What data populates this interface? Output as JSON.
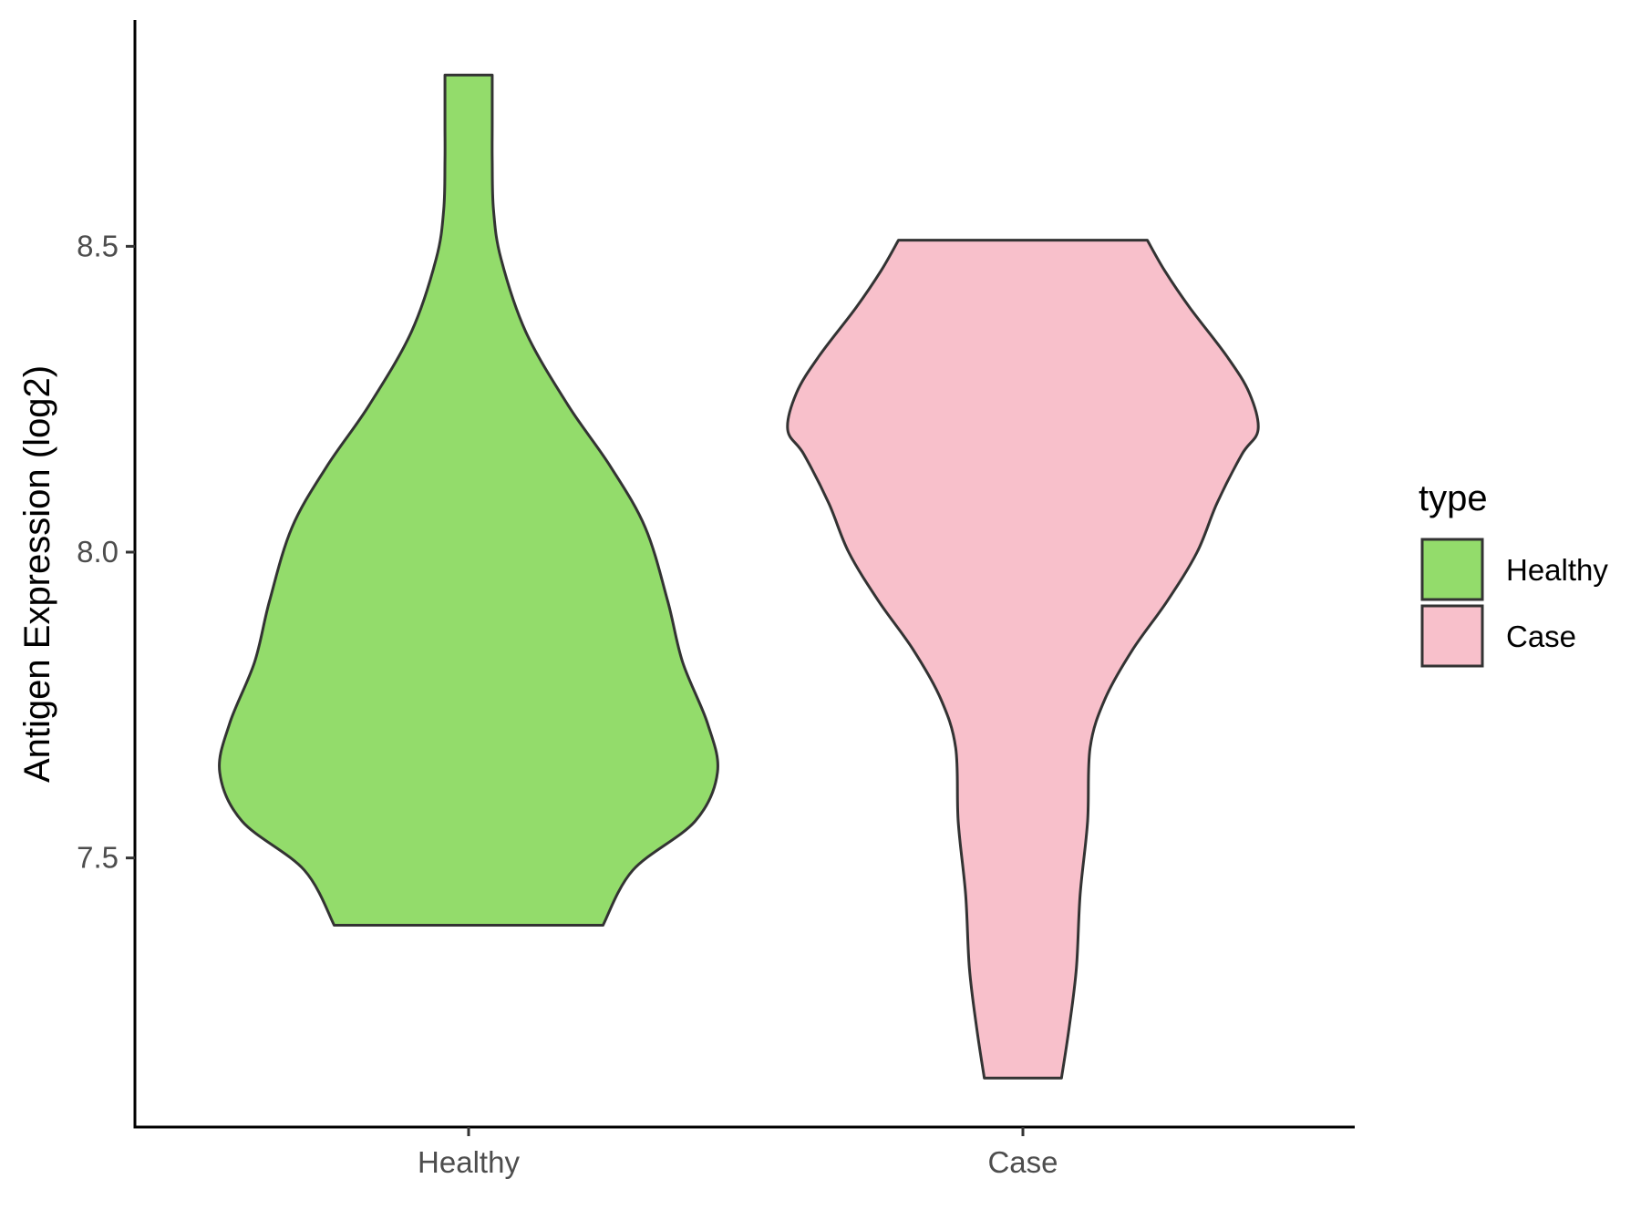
{
  "chart_data": {
    "type": "violin",
    "title": "",
    "xlabel": "",
    "ylabel": "Antigen Expression (log2)",
    "categories": [
      "Healthy",
      "Case"
    ],
    "y_ticks": [
      "7.5",
      "8.0",
      "8.5"
    ],
    "y_tick_values": [
      7.5,
      8.0,
      8.5
    ],
    "ylim": [
      7.06,
      8.87
    ],
    "grid": false,
    "legend": {
      "title": "type",
      "position": "right",
      "entries": [
        "Healthy",
        "Case"
      ]
    },
    "series": [
      {
        "name": "Healthy",
        "color": "#93DC6B",
        "min": 7.39,
        "max": 8.78,
        "density_profile": [
          [
            7.39,
            0.54
          ],
          [
            7.48,
            0.66
          ],
          [
            7.56,
            0.91
          ],
          [
            7.64,
            1.0
          ],
          [
            7.72,
            0.96
          ],
          [
            7.82,
            0.86
          ],
          [
            7.92,
            0.8
          ],
          [
            8.04,
            0.71
          ],
          [
            8.14,
            0.57
          ],
          [
            8.24,
            0.4
          ],
          [
            8.36,
            0.23
          ],
          [
            8.48,
            0.13
          ],
          [
            8.56,
            0.1
          ],
          [
            8.64,
            0.095
          ],
          [
            8.7,
            0.095
          ],
          [
            8.78,
            0.095
          ]
        ]
      },
      {
        "name": "Case",
        "color": "#F8C0CB",
        "min": 7.14,
        "max": 8.51,
        "density_profile": [
          [
            7.14,
            0.155
          ],
          [
            7.22,
            0.185
          ],
          [
            7.32,
            0.215
          ],
          [
            7.44,
            0.23
          ],
          [
            7.56,
            0.26
          ],
          [
            7.68,
            0.27
          ],
          [
            7.76,
            0.33
          ],
          [
            7.84,
            0.44
          ],
          [
            7.92,
            0.58
          ],
          [
            8.0,
            0.7
          ],
          [
            8.08,
            0.78
          ],
          [
            8.16,
            0.88
          ],
          [
            8.2,
            0.945
          ],
          [
            8.26,
            0.91
          ],
          [
            8.32,
            0.82
          ],
          [
            8.4,
            0.67
          ],
          [
            8.46,
            0.57
          ],
          [
            8.51,
            0.5
          ]
        ]
      }
    ]
  }
}
